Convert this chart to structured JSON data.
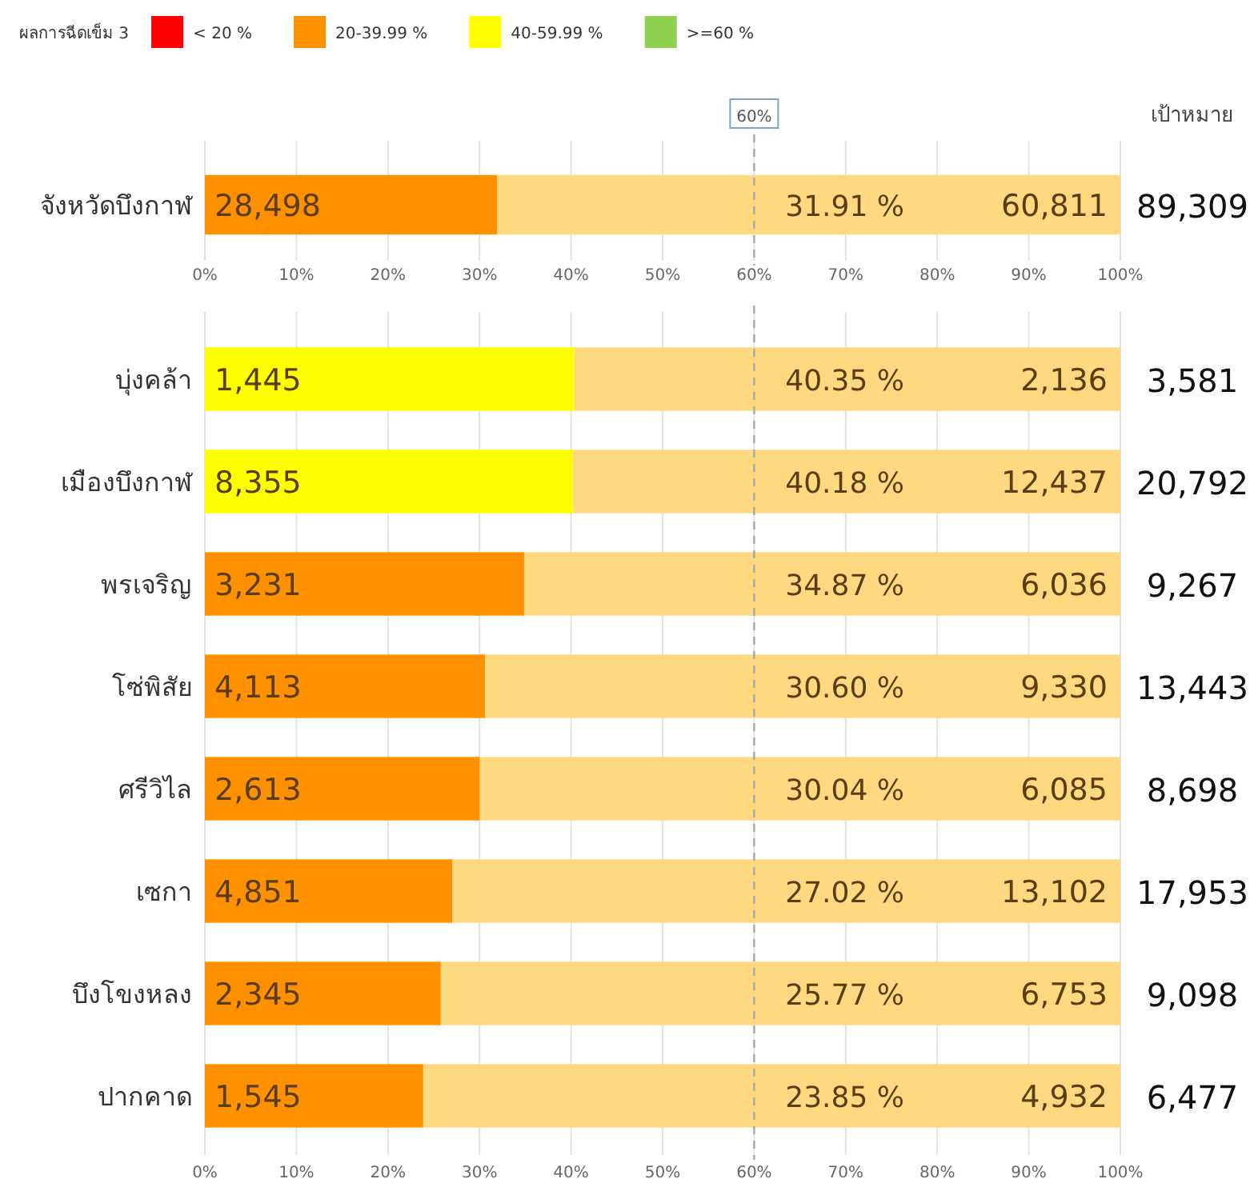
{
  "chart_data": [
    {
      "type": "bar",
      "orientation": "horizontal",
      "stacked": true,
      "legend": "top left",
      "legend_title": "ผลการฉีดเข็ม 3",
      "grid": "x",
      "categories": [
        "จังหวัดบึงกาฬ"
      ],
      "series": [
        {
          "name": "< 20 %",
          "color": "#ff0000",
          "values": [
            null
          ]
        },
        {
          "name": "20-39.99 %",
          "color": "#ff9100",
          "values": [
            31.91
          ]
        },
        {
          "name": "40-59.99 %",
          "color": "#ffff00",
          "values": [
            null
          ]
        },
        {
          "name": ">=60 %",
          "color": "#8fd14f",
          "values": [
            null
          ]
        },
        {
          "color": "#fed97f",
          "values": [
            68.09
          ]
        }
      ],
      "xlim": [
        0,
        100
      ],
      "xticks": [
        {
          "value": 0,
          "label": "0%"
        },
        {
          "value": 10,
          "label": "10%"
        },
        {
          "value": 20,
          "label": "20%"
        },
        {
          "value": 30,
          "label": "30%"
        },
        {
          "value": 40,
          "label": "40%"
        },
        {
          "value": 50,
          "label": "50%"
        },
        {
          "value": 60,
          "label": "60%"
        },
        {
          "value": 70,
          "label": "70%"
        },
        {
          "value": 80,
          "label": "80%"
        },
        {
          "value": 90,
          "label": "90%"
        },
        {
          "value": 100,
          "label": "100%"
        }
      ],
      "ref_lines": [
        {
          "axis": "x",
          "value": 60,
          "label": "60%",
          "color": "#a9a9a9",
          "line_style": "dashed"
        }
      ],
      "annotations": [
        "เป้าหมาย",
        "28,498",
        "31.91 %",
        "60,811",
        "89,309"
      ]
    },
    {
      "type": "bar",
      "orientation": "horizontal",
      "stacked": true,
      "grid": "x",
      "categories": [
        "บุ่งคล้า",
        "เมืองบึงกาฬ",
        "พรเจริญ",
        "โซ่พิสัย",
        "ศรีวิไล",
        "เซกา",
        "บึงโขงหลง",
        "ปากคาด"
      ],
      "series": [
        {
          "color": "#ff9100",
          "values": [
            null,
            null,
            34.87,
            30.6,
            30.04,
            27.02,
            25.77,
            23.85
          ]
        },
        {
          "color": "#ffff00",
          "values": [
            40.35,
            40.18,
            null,
            null,
            null,
            null,
            null,
            null
          ]
        },
        {
          "color": "#fed97f",
          "values": [
            59.65,
            59.82,
            65.13,
            69.4,
            69.96,
            72.98,
            74.23,
            76.15
          ]
        }
      ],
      "xlim": [
        0,
        100
      ],
      "xticks": [
        {
          "value": 0,
          "label": "0%"
        },
        {
          "value": 10,
          "label": "10%"
        },
        {
          "value": 20,
          "label": "20%"
        },
        {
          "value": 30,
          "label": "30%"
        },
        {
          "value": 40,
          "label": "40%"
        },
        {
          "value": 50,
          "label": "50%"
        },
        {
          "value": 60,
          "label": "60%"
        },
        {
          "value": 70,
          "label": "70%"
        },
        {
          "value": 80,
          "label": "80%"
        },
        {
          "value": 90,
          "label": "90%"
        },
        {
          "value": 100,
          "label": "100%"
        }
      ],
      "ref_lines": [
        {
          "axis": "x",
          "value": 60,
          "color": "#a9a9a9",
          "line_style": "dashed"
        }
      ],
      "annotations": [
        "1,445",
        "40.35 %",
        "2,136",
        "3,581",
        "8,355",
        "40.18 %",
        "12,437",
        "20,792",
        "3,231",
        "34.87 %",
        "6,036",
        "9,267",
        "4,113",
        "30.60 %",
        "9,330",
        "13,443",
        "2,613",
        "30.04 %",
        "6,085",
        "8,698",
        "4,851",
        "27.02 %",
        "13,102",
        "17,953",
        "2,345",
        "25.77 %",
        "6,753",
        "9,098",
        "1,545",
        "23.85 %",
        "4,932",
        "6,477"
      ]
    }
  ]
}
